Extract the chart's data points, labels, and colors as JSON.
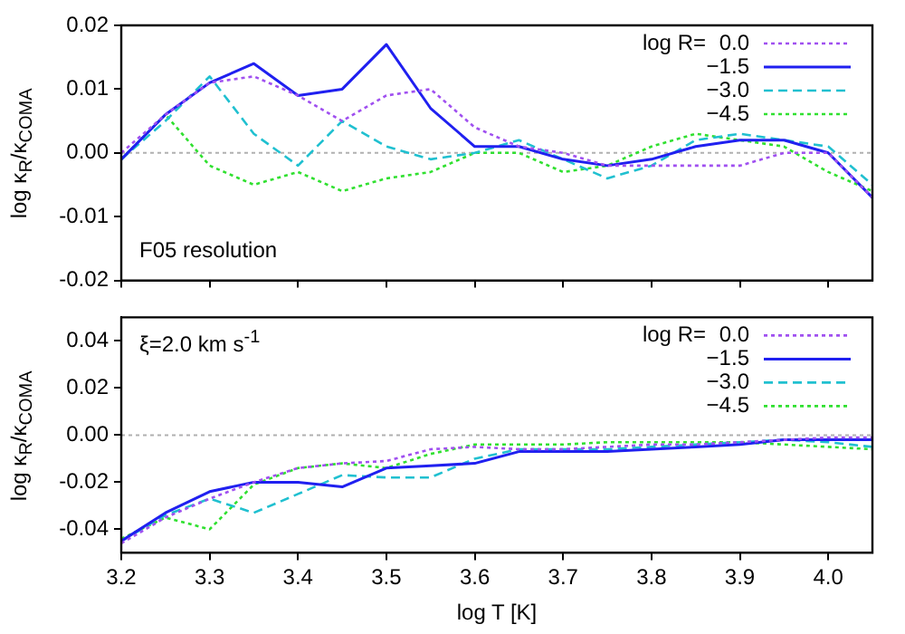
{
  "chart_data": [
    {
      "type": "line",
      "ylabel": "log κ$_{R}$/κ$_{COMA}$",
      "legend_title": "log R=",
      "legend": "top right",
      "annotations": [
        "F05 resolution"
      ],
      "tick_labels": "y",
      "x": [
        3.2,
        3.25,
        3.3,
        3.35,
        3.4,
        3.45,
        3.5,
        3.55,
        3.6,
        3.65,
        3.7,
        3.75,
        3.8,
        3.85,
        3.9,
        3.95,
        4.0,
        4.05
      ],
      "xlim": [
        3.2,
        4.05
      ],
      "xticks": [
        {
          "value": 3.2,
          "label": null
        },
        {
          "value": 3.3,
          "label": null
        },
        {
          "value": 3.4,
          "label": null
        },
        {
          "value": 3.5,
          "label": null
        },
        {
          "value": 3.6,
          "label": null
        },
        {
          "value": 3.7,
          "label": null
        },
        {
          "value": 3.8,
          "label": null
        },
        {
          "value": 3.9,
          "label": null
        },
        {
          "value": 4.0,
          "label": null
        }
      ],
      "ylim": [
        -0.02,
        0.02
      ],
      "yticks": [
        -0.02,
        -0.01,
        {
          "value": 0,
          "label": "0.00"
        },
        0.01,
        0.02
      ],
      "ref_lines": [
        {
          "axis": "y",
          "value": 0,
          "color": "#b0b0b0",
          "line_style": "dotted"
        }
      ],
      "series": [
        {
          "name": "0.0",
          "color": "#a050f0",
          "line_style": "dotted",
          "values": [
            0,
            0.006,
            0.011,
            0.012,
            0.009,
            0.005,
            0.009,
            0.01,
            0.004,
            0.001,
            0.0,
            -0.002,
            -0.002,
            -0.002,
            -0.002,
            0.0,
            0.0,
            -0.007
          ]
        },
        {
          "name": "−1.5",
          "color": "#2020f0",
          "line_style": "solid",
          "values": [
            -0.001,
            0.006,
            0.011,
            0.014,
            0.009,
            0.01,
            0.017,
            0.007,
            0.001,
            0.001,
            -0.001,
            -0.002,
            -0.001,
            0.001,
            0.002,
            0.002,
            0.0,
            -0.007
          ]
        },
        {
          "name": "−3.0",
          "color": "#20c0d0",
          "line_style": "dashed",
          "values": [
            -0.001,
            0.005,
            0.012,
            0.003,
            -0.002,
            0.005,
            0.001,
            -0.001,
            0.0,
            0.002,
            -0.001,
            -0.004,
            -0.002,
            0.002,
            0.003,
            0.002,
            0.001,
            -0.005
          ]
        },
        {
          "name": "−4.5",
          "color": "#30e030",
          "line_style": "dotted",
          "values": [
            -0.001,
            0.006,
            -0.002,
            -0.005,
            -0.003,
            -0.006,
            -0.004,
            -0.003,
            0.0,
            0.0,
            -0.003,
            -0.002,
            0.001,
            0.003,
            0.002,
            0.001,
            -0.003,
            -0.006
          ]
        }
      ]
    },
    {
      "type": "line",
      "xlabel": "log T [K]",
      "ylabel": "log κ$_{R}$/κ$_{COMA}$",
      "legend_title": "log R=",
      "legend": "top right",
      "annotations": [
        "ξ=2.0 km s$^{-1}$"
      ],
      "x": [
        3.2,
        3.25,
        3.3,
        3.35,
        3.4,
        3.45,
        3.5,
        3.55,
        3.6,
        3.65,
        3.7,
        3.75,
        3.8,
        3.85,
        3.9,
        3.95,
        4.0,
        4.05
      ],
      "xlim": [
        3.2,
        4.05
      ],
      "xticks": [
        {
          "value": 3.2,
          "label": "3.2"
        },
        {
          "value": 3.3,
          "label": "3.3"
        },
        {
          "value": 3.4,
          "label": "3.4"
        },
        {
          "value": 3.5,
          "label": "3.5"
        },
        {
          "value": 3.6,
          "label": "3.6"
        },
        {
          "value": 3.7,
          "label": "3.7"
        },
        {
          "value": 3.8,
          "label": "3.8"
        },
        {
          "value": 3.9,
          "label": "3.9"
        },
        {
          "value": 4.0,
          "label": "4.0"
        }
      ],
      "ylim": [
        -0.05,
        0.05
      ],
      "yticks": [
        -0.04,
        -0.02,
        {
          "value": 0,
          "label": "0.00"
        },
        0.02,
        0.04
      ],
      "ref_lines": [
        {
          "axis": "y",
          "value": 0,
          "color": "#b0b0b0",
          "line_style": "dotted"
        }
      ],
      "series": [
        {
          "name": "0.0",
          "color": "#a050f0",
          "line_style": "dotted",
          "values": [
            -0.046,
            -0.035,
            -0.027,
            -0.02,
            -0.014,
            -0.012,
            -0.011,
            -0.006,
            -0.005,
            -0.006,
            -0.006,
            -0.005,
            -0.004,
            -0.004,
            -0.003,
            -0.002,
            -0.001,
            -0.001
          ]
        },
        {
          "name": "−1.5",
          "color": "#2020f0",
          "line_style": "solid",
          "values": [
            -0.045,
            -0.033,
            -0.024,
            -0.02,
            -0.02,
            -0.022,
            -0.014,
            -0.013,
            -0.012,
            -0.007,
            -0.007,
            -0.007,
            -0.006,
            -0.005,
            -0.004,
            -0.002,
            -0.002,
            -0.002
          ]
        },
        {
          "name": "−3.0",
          "color": "#20c0d0",
          "line_style": "dashed",
          "values": [
            -0.045,
            -0.034,
            -0.027,
            -0.033,
            -0.025,
            -0.017,
            -0.018,
            -0.018,
            -0.01,
            -0.006,
            -0.006,
            -0.006,
            -0.005,
            -0.004,
            -0.003,
            -0.002,
            -0.003,
            -0.005
          ]
        },
        {
          "name": "−4.5",
          "color": "#30e030",
          "line_style": "dotted",
          "values": [
            -0.044,
            -0.035,
            -0.04,
            -0.021,
            -0.014,
            -0.012,
            -0.014,
            -0.008,
            -0.004,
            -0.004,
            -0.004,
            -0.003,
            -0.003,
            -0.003,
            -0.003,
            -0.004,
            -0.005,
            -0.006
          ]
        }
      ]
    }
  ]
}
